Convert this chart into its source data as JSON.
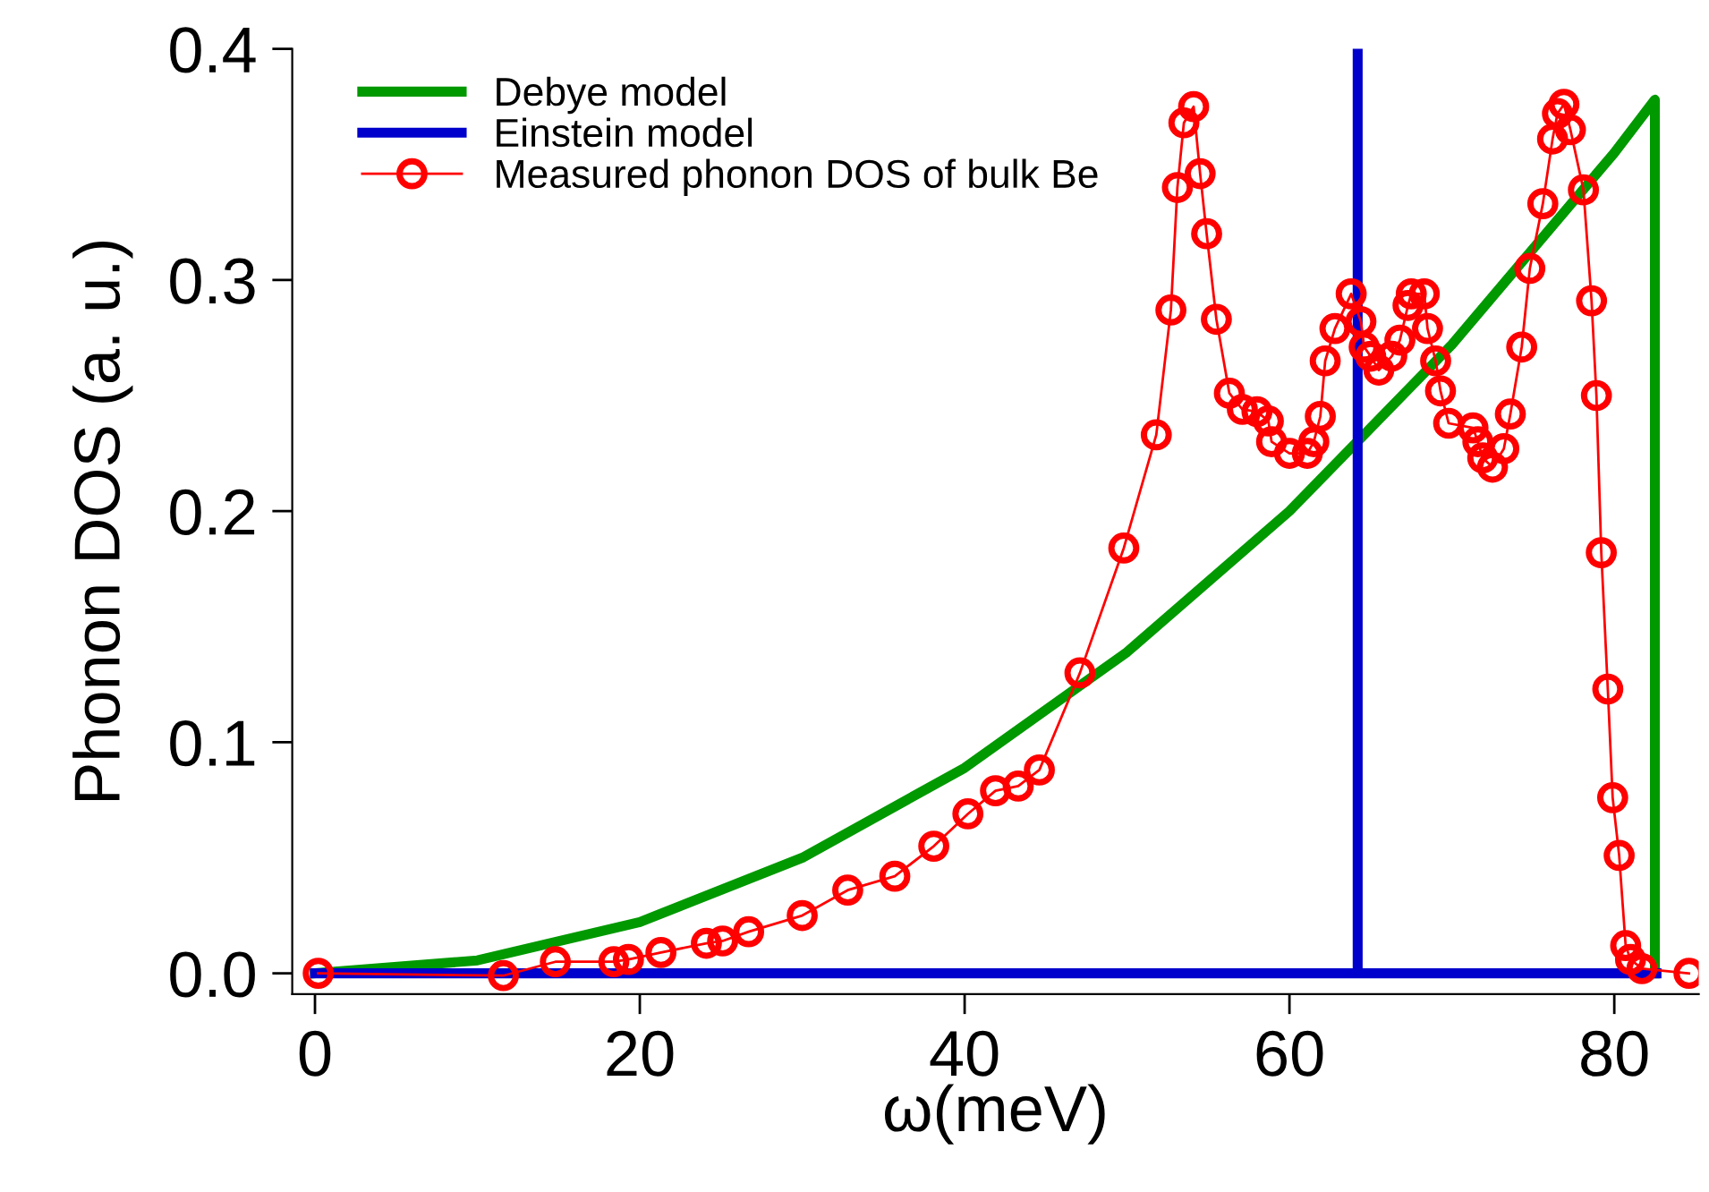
{
  "chart_data": {
    "type": "line",
    "xlabel": "ω(meV)",
    "ylabel": "Phonon DOS (a. u.)",
    "xlim": [
      -1.4,
      85.2
    ],
    "ylim": [
      -0.009,
      0.4
    ],
    "xticks": [
      0,
      20,
      40,
      60,
      80
    ],
    "yticks": [
      {
        "value": 0,
        "label": "0.0"
      },
      0.1,
      0.2,
      0.3,
      0.4
    ],
    "grid": false,
    "legend": "top left",
    "series": [
      {
        "name": "Debye model",
        "color": "#009900",
        "marker": "none",
        "x": [
          0,
          10,
          20,
          30,
          40,
          50,
          60,
          70,
          80,
          82.5,
          82.5
        ],
        "values": [
          0,
          0.0056,
          0.0222,
          0.05,
          0.0889,
          0.139,
          0.2,
          0.272,
          0.355,
          0.378,
          0
        ]
      },
      {
        "name": "Einstein model",
        "color": "#0000cc",
        "marker": "none",
        "x": [
          0,
          64.2,
          64.2,
          64.2,
          82.6
        ],
        "values": [
          0,
          0,
          0.4,
          0,
          0
        ]
      },
      {
        "name": "Measured phonon DOS of bulk Be",
        "color": "#ff0000",
        "marker": "circle",
        "x": [
          0.2,
          11.6,
          14.8,
          18.4,
          19.3,
          21.3,
          24.1,
          25.1,
          26.7,
          30.0,
          32.8,
          35.7,
          38.1,
          40.2,
          41.9,
          43.3,
          44.6,
          47.1,
          49.8,
          51.8,
          52.7,
          53.1,
          53.5,
          54.1,
          54.5,
          54.9,
          55.5,
          56.3,
          57.1,
          58.0,
          58.7,
          58.9,
          60.0,
          61.1,
          61.5,
          61.9,
          62.2,
          62.8,
          63.8,
          64.4,
          64.6,
          65.0,
          65.5,
          66.3,
          66.8,
          67.3,
          67.5,
          68.3,
          68.5,
          69.0,
          69.3,
          69.8,
          71.3,
          71.6,
          71.9,
          72.5,
          73.2,
          73.6,
          74.3,
          74.8,
          75.6,
          76.2,
          76.5,
          76.9,
          77.3,
          78.1,
          78.6,
          78.9,
          79.2,
          79.6,
          79.9,
          80.3,
          80.7,
          81.0,
          81.7,
          84.6
        ],
        "values": [
          0.0,
          -0.001,
          0.005,
          0.005,
          0.006,
          0.009,
          0.013,
          0.014,
          0.018,
          0.025,
          0.036,
          0.042,
          0.055,
          0.069,
          0.079,
          0.081,
          0.088,
          0.13,
          0.184,
          0.233,
          0.287,
          0.34,
          0.368,
          0.375,
          0.346,
          0.32,
          0.283,
          0.251,
          0.244,
          0.243,
          0.239,
          0.23,
          0.225,
          0.225,
          0.23,
          0.241,
          0.265,
          0.279,
          0.294,
          0.282,
          0.271,
          0.267,
          0.261,
          0.267,
          0.274,
          0.289,
          0.294,
          0.294,
          0.279,
          0.265,
          0.252,
          0.238,
          0.236,
          0.23,
          0.223,
          0.219,
          0.227,
          0.242,
          0.271,
          0.305,
          0.333,
          0.361,
          0.372,
          0.376,
          0.365,
          0.339,
          0.291,
          0.25,
          0.182,
          0.123,
          0.076,
          0.051,
          0.012,
          0.006,
          0.002,
          0.0
        ]
      }
    ]
  }
}
